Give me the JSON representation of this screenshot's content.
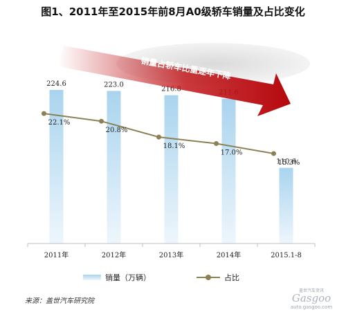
{
  "title": "图1、2011年至2015年前8月A0级轿车销量及占比变化",
  "annotation": "销量占轿车比重逐年下降",
  "source": "来源：盖世汽车研究院",
  "watermark": {
    "top": "盖世汽车资讯",
    "brand": "Gasgoo",
    "url": "auto.gasgoo.com"
  },
  "colors": {
    "bar": "#a9d4ee",
    "line": "#8b8155",
    "arrow": "#c0171b",
    "axis": "#bfbfbf"
  },
  "chart_data": {
    "type": "bar",
    "categories": [
      "2011年",
      "2012年",
      "2013年",
      "2014年",
      "2015.1-8"
    ],
    "series": [
      {
        "name": "销量（万辆）",
        "type": "bar",
        "values": [
          224.6,
          223.0,
          216.8,
          211.6,
          110.6
        ],
        "labels": [
          "224.6",
          "223.0",
          "216.8",
          "211.6",
          "110.6"
        ]
      },
      {
        "name": "占比",
        "type": "line",
        "values": [
          22.1,
          20.8,
          18.1,
          17.0,
          15.3
        ],
        "labels": [
          "22.1%",
          "20.8%",
          "18.1%",
          "17.0%",
          "15.3%"
        ]
      }
    ],
    "ylim_bar": [
      0,
      275
    ],
    "ylim_line": [
      0,
      32
    ],
    "legend_position": "bottom",
    "grid": false
  }
}
